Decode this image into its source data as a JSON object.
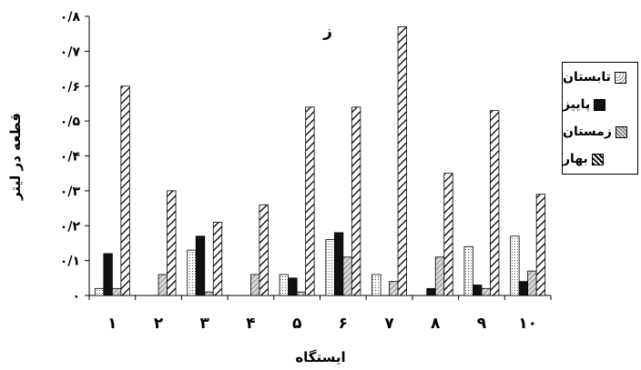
{
  "chart_data": {
    "type": "bar",
    "title": "ز",
    "xlabel": "ایستگاه",
    "ylabel": "قطعه در لیتر",
    "ylim": [
      0,
      0.8
    ],
    "yticks": [
      0,
      0.1,
      0.2,
      0.3,
      0.4,
      0.5,
      0.6,
      0.7,
      0.8
    ],
    "ytick_labels": [
      "۰",
      "۰/۱",
      "۰/۲",
      "۰/۳",
      "۰/۴",
      "۰/۵",
      "۰/۶",
      "۰/۷",
      "۰/۸"
    ],
    "categories": [
      "۱",
      "۲",
      "۳",
      "۴",
      "۵",
      "۶",
      "۷",
      "۸",
      "۹",
      "۱۰"
    ],
    "series": [
      {
        "name": "تابستان",
        "pattern": "dots",
        "values": [
          0.02,
          0,
          0.13,
          0,
          0.06,
          0.16,
          0.06,
          0,
          0.14,
          0.17
        ]
      },
      {
        "name": "پاییز",
        "pattern": "solid",
        "values": [
          0.12,
          0,
          0.17,
          0,
          0.05,
          0.18,
          0,
          0.02,
          0.03,
          0.04
        ]
      },
      {
        "name": "زمستان",
        "pattern": "lightdiag",
        "values": [
          0.02,
          0.06,
          0.01,
          0.06,
          0.01,
          0.11,
          0.04,
          0.11,
          0.02,
          0.07
        ]
      },
      {
        "name": "بهار",
        "pattern": "diag",
        "values": [
          0.6,
          0.3,
          0.21,
          0.26,
          0.54,
          0.54,
          0.77,
          0.35,
          0.53,
          0.29
        ]
      }
    ],
    "grid": false,
    "legend": "right"
  }
}
